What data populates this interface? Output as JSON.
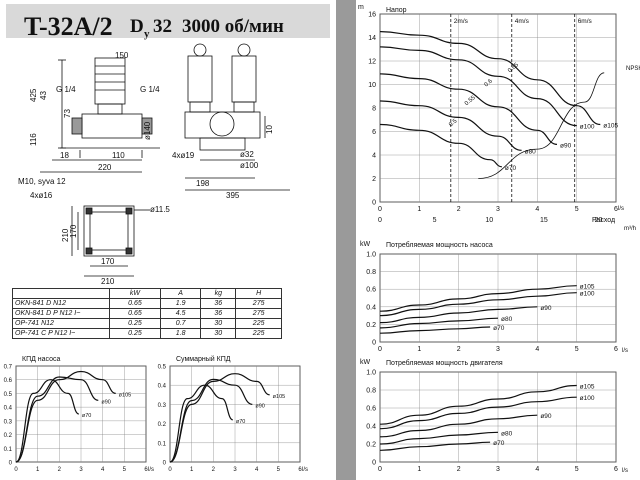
{
  "header": {
    "title": "T-32A/2",
    "dn_symbol": "D",
    "dn_sub": "y",
    "dn_value": "32",
    "speed": "3000 об/мин"
  },
  "drawing": {
    "dims_front": [
      "150",
      "425",
      "43",
      "73",
      "116",
      "G 1/4",
      "G 1/4",
      "ø140",
      "18",
      "110",
      "220"
    ],
    "dims_side": [
      "10",
      "4xø19",
      "ø32",
      "ø100",
      "198",
      "395"
    ],
    "labels": [
      "M10, syva 12",
      "4xø16",
      "ø11.5",
      "210",
      "170",
      "210",
      "170"
    ]
  },
  "table": {
    "headers": [
      "",
      "kW",
      "A",
      "kg",
      "H"
    ],
    "rows": [
      [
        "OKN-841 D N12",
        "0.65",
        "1.9",
        "36",
        "275"
      ],
      [
        "OKN-841 D P N12 I~",
        "0.65",
        "4.5",
        "36",
        "275"
      ],
      [
        "OP-741 N12",
        "0.25",
        "0.7",
        "30",
        "225"
      ],
      [
        "OP-741 C P N12 I~",
        "0.25",
        "1.8",
        "30",
        "225"
      ]
    ]
  },
  "eff_pump": {
    "title": "КПД насоса",
    "x_unit": "l/s",
    "x_ticks": [
      "0",
      "1",
      "2",
      "3",
      "4",
      "5",
      "6"
    ],
    "y_ticks": [
      "0",
      "0.1",
      "0.2",
      "0.3",
      "0.4",
      "0.5",
      "0.6",
      "0.7"
    ],
    "series": [
      {
        "name": "ø105",
        "x": [
          0,
          1,
          2,
          3,
          4,
          4.6
        ],
        "y": [
          0,
          0.45,
          0.6,
          0.66,
          0.6,
          0.5
        ]
      },
      {
        "name": "ø90",
        "x": [
          0,
          1,
          2,
          3,
          3.8
        ],
        "y": [
          0,
          0.48,
          0.62,
          0.6,
          0.45
        ]
      },
      {
        "name": "ø70",
        "x": [
          0,
          0.8,
          1.6,
          2.4,
          2.9
        ],
        "y": [
          0,
          0.5,
          0.6,
          0.5,
          0.35
        ]
      }
    ]
  },
  "eff_total": {
    "title": "Суммарный КПД",
    "x_unit": "l/s",
    "x_ticks": [
      "0",
      "1",
      "2",
      "3",
      "4",
      "5",
      "6"
    ],
    "y_ticks": [
      "0",
      "0.1",
      "0.2",
      "0.3",
      "0.4",
      "0.5"
    ],
    "series": [
      {
        "name": "ø105",
        "x": [
          0,
          1,
          2,
          3,
          4,
          4.6
        ],
        "y": [
          0,
          0.3,
          0.42,
          0.46,
          0.42,
          0.35
        ]
      },
      {
        "name": "ø90",
        "x": [
          0,
          1,
          2,
          3,
          3.8
        ],
        "y": [
          0,
          0.32,
          0.43,
          0.4,
          0.3
        ]
      },
      {
        "name": "ø70",
        "x": [
          0,
          0.8,
          1.6,
          2.4,
          2.9
        ],
        "y": [
          0,
          0.33,
          0.4,
          0.33,
          0.22
        ]
      }
    ]
  },
  "chart_data": [
    {
      "type": "line",
      "title": "Напор",
      "ylabel": "m",
      "xlabel": "Расход",
      "x_unit": "l/s",
      "x2_unit": "m³/h",
      "ylim": [
        0,
        16
      ],
      "xlim": [
        0,
        6
      ],
      "velocity_marks": [
        "2m/s",
        "4m/s",
        "6m/s"
      ],
      "npsh_label": "NPSH",
      "x_ticks": [
        "0",
        "1",
        "2",
        "3",
        "4",
        "5",
        "6"
      ],
      "x2_ticks": [
        "0",
        "5",
        "10",
        "15",
        "20"
      ],
      "y_ticks": [
        "0",
        "2",
        "4",
        "6",
        "8",
        "10",
        "12",
        "14",
        "16"
      ],
      "eff_labels": [
        "0.5",
        "0.55",
        "0.6",
        "0.65"
      ],
      "series": [
        {
          "name": "ø105",
          "x": [
            0,
            1,
            2,
            3,
            4,
            5,
            5.6
          ],
          "y": [
            14.5,
            14.2,
            13.5,
            12.2,
            10.4,
            8.2,
            6.6
          ]
        },
        {
          "name": "ø100",
          "x": [
            0,
            1,
            2,
            3,
            4,
            5
          ],
          "y": [
            13.2,
            12.9,
            12.1,
            10.7,
            8.8,
            6.5
          ]
        },
        {
          "name": "ø90",
          "x": [
            0,
            1,
            2,
            3,
            4,
            4.5
          ],
          "y": [
            10.9,
            10.5,
            9.6,
            8.1,
            6.1,
            4.9
          ]
        },
        {
          "name": "ø80",
          "x": [
            0,
            1,
            2,
            3,
            3.6
          ],
          "y": [
            8.6,
            8.2,
            7.2,
            5.6,
            4.4
          ]
        },
        {
          "name": "ø70",
          "x": [
            0,
            1,
            2,
            2.8,
            3.1
          ],
          "y": [
            6.6,
            6.1,
            5.0,
            3.6,
            3.0
          ]
        }
      ]
    },
    {
      "type": "line",
      "title": "Потребляемая мощность насоса",
      "ylabel": "kW",
      "x_unit": "l/s",
      "ylim": [
        0,
        1.0
      ],
      "xlim": [
        0,
        6
      ],
      "x_ticks": [
        "0",
        "1",
        "2",
        "3",
        "4",
        "5",
        "6"
      ],
      "y_ticks": [
        "0",
        "0.2",
        "0.4",
        "0.6",
        "0.8",
        "1.0"
      ],
      "series": [
        {
          "name": "ø105",
          "x": [
            0,
            1,
            2,
            3,
            4,
            5
          ],
          "y": [
            0.35,
            0.42,
            0.49,
            0.55,
            0.6,
            0.64
          ]
        },
        {
          "name": "ø100",
          "x": [
            0,
            1,
            2,
            3,
            4,
            5
          ],
          "y": [
            0.3,
            0.37,
            0.43,
            0.48,
            0.52,
            0.56
          ]
        },
        {
          "name": "ø90",
          "x": [
            0,
            1,
            2,
            3,
            4
          ],
          "y": [
            0.22,
            0.28,
            0.33,
            0.37,
            0.4
          ]
        },
        {
          "name": "ø80",
          "x": [
            0,
            1,
            2,
            3
          ],
          "y": [
            0.16,
            0.21,
            0.24,
            0.27
          ]
        },
        {
          "name": "ø70",
          "x": [
            0,
            1,
            2,
            2.8
          ],
          "y": [
            0.1,
            0.13,
            0.15,
            0.17
          ]
        }
      ]
    },
    {
      "type": "line",
      "title": "Потребляемая мощность двигателя",
      "ylabel": "kW",
      "x_unit": "l/s",
      "ylim": [
        0,
        1.0
      ],
      "xlim": [
        0,
        6
      ],
      "x_ticks": [
        "0",
        "1",
        "2",
        "3",
        "4",
        "5",
        "6"
      ],
      "y_ticks": [
        "0",
        "0.2",
        "0.4",
        "0.6",
        "0.8",
        "1.0"
      ],
      "series": [
        {
          "name": "ø105",
          "x": [
            0,
            1,
            2,
            3,
            4,
            5
          ],
          "y": [
            0.42,
            0.52,
            0.62,
            0.7,
            0.78,
            0.85
          ]
        },
        {
          "name": "ø100",
          "x": [
            0,
            1,
            2,
            3,
            4,
            5
          ],
          "y": [
            0.37,
            0.46,
            0.54,
            0.61,
            0.67,
            0.72
          ]
        },
        {
          "name": "ø90",
          "x": [
            0,
            1,
            2,
            3,
            4
          ],
          "y": [
            0.28,
            0.35,
            0.42,
            0.48,
            0.52
          ]
        },
        {
          "name": "ø80",
          "x": [
            0,
            1,
            2,
            3
          ],
          "y": [
            0.2,
            0.26,
            0.3,
            0.33
          ]
        },
        {
          "name": "ø70",
          "x": [
            0,
            1,
            2,
            2.8
          ],
          "y": [
            0.13,
            0.17,
            0.2,
            0.22
          ]
        }
      ]
    }
  ]
}
